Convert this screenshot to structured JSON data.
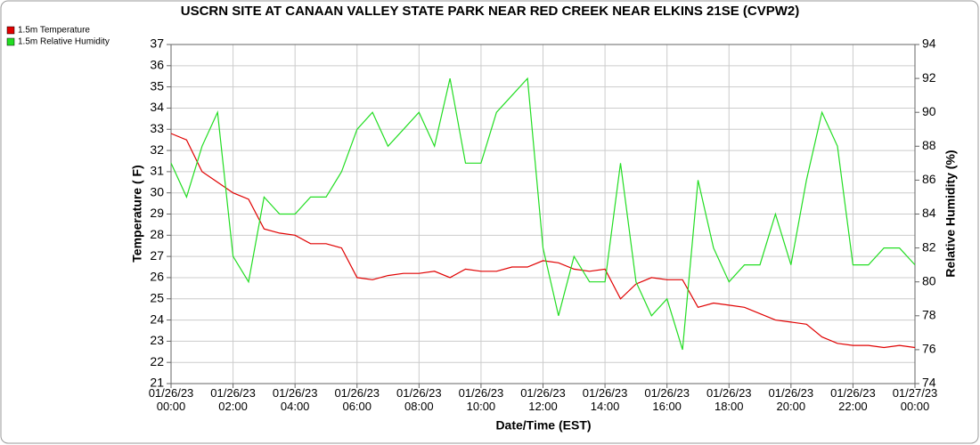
{
  "chart_data": {
    "type": "line",
    "title": "USCRN SITE AT CANAAN VALLEY STATE PARK NEAR RED CREEK NEAR ELKINS 21SE (CVPW2)",
    "xlabel": "Date/Time (EST)",
    "ylabel": "Temperature ( F)",
    "y2label": "Relative Humidity (%)",
    "x": [
      "01/26/23 00:00",
      "01/26/23 00:30",
      "01/26/23 01:00",
      "01/26/23 01:30",
      "01/26/23 02:00",
      "01/26/23 02:30",
      "01/26/23 03:00",
      "01/26/23 03:30",
      "01/26/23 04:00",
      "01/26/23 04:30",
      "01/26/23 05:00",
      "01/26/23 05:30",
      "01/26/23 06:00",
      "01/26/23 06:30",
      "01/26/23 07:00",
      "01/26/23 07:30",
      "01/26/23 08:00",
      "01/26/23 08:30",
      "01/26/23 09:00",
      "01/26/23 09:30",
      "01/26/23 10:00",
      "01/26/23 10:30",
      "01/26/23 11:00",
      "01/26/23 11:30",
      "01/26/23 12:00",
      "01/26/23 12:30",
      "01/26/23 13:00",
      "01/26/23 13:30",
      "01/26/23 14:00",
      "01/26/23 14:30",
      "01/26/23 15:00",
      "01/26/23 15:30",
      "01/26/23 16:00",
      "01/26/23 16:30",
      "01/26/23 17:00",
      "01/26/23 17:30",
      "01/26/23 18:00",
      "01/26/23 18:30",
      "01/26/23 19:00",
      "01/26/23 19:30",
      "01/26/23 20:00",
      "01/26/23 20:30",
      "01/26/23 21:00",
      "01/26/23 21:30",
      "01/26/23 22:00",
      "01/26/23 22:30",
      "01/26/23 23:00",
      "01/26/23 23:30",
      "01/27/23 00:00"
    ],
    "series": [
      {
        "name": "1.5m Temperature",
        "color": "#e00000",
        "axis": "y",
        "values": [
          32.8,
          32.5,
          31.0,
          30.5,
          30.0,
          29.7,
          28.3,
          28.1,
          28.0,
          27.6,
          27.6,
          27.4,
          26.0,
          25.9,
          26.1,
          26.2,
          26.2,
          26.3,
          26.0,
          26.4,
          26.3,
          26.3,
          26.5,
          26.5,
          26.8,
          26.7,
          26.4,
          26.3,
          26.4,
          25.0,
          25.7,
          26.0,
          25.9,
          25.9,
          24.6,
          24.8,
          24.7,
          24.6,
          24.3,
          24.0,
          23.9,
          23.8,
          23.2,
          22.9,
          22.8,
          22.8,
          22.7,
          22.8,
          22.7
        ]
      },
      {
        "name": "1.5m Relative Humidity",
        "color": "#22dd22",
        "axis": "y2",
        "values": [
          87,
          85,
          88,
          90,
          81.5,
          80,
          85,
          84,
          84,
          85,
          85,
          86.5,
          89,
          90,
          88,
          89,
          90,
          88,
          92,
          87,
          87,
          90,
          91,
          92,
          82,
          78,
          81.5,
          80,
          80,
          87,
          80,
          78,
          79,
          76,
          86,
          82,
          80,
          81,
          81,
          84,
          81,
          86,
          90,
          88,
          81,
          81,
          82,
          82,
          81
        ]
      }
    ],
    "xlim": [
      "01/26/23 00:00",
      "01/27/23 00:00"
    ],
    "xticks": [
      "01/26/23 00:00",
      "01/26/23 02:00",
      "01/26/23 04:00",
      "01/26/23 06:00",
      "01/26/23 08:00",
      "01/26/23 10:00",
      "01/26/23 12:00",
      "01/26/23 14:00",
      "01/26/23 16:00",
      "01/26/23 18:00",
      "01/26/23 20:00",
      "01/26/23 22:00",
      "01/27/23 00:00"
    ],
    "ylim": [
      21,
      37
    ],
    "yticks": [
      21,
      22,
      23,
      24,
      25,
      26,
      27,
      28,
      29,
      30,
      31,
      32,
      33,
      34,
      35,
      36,
      37
    ],
    "y2lim": [
      74,
      94
    ],
    "y2ticks": [
      74,
      76,
      78,
      80,
      82,
      84,
      86,
      88,
      90,
      92,
      94
    ],
    "grid": true,
    "legend": "upper left"
  }
}
